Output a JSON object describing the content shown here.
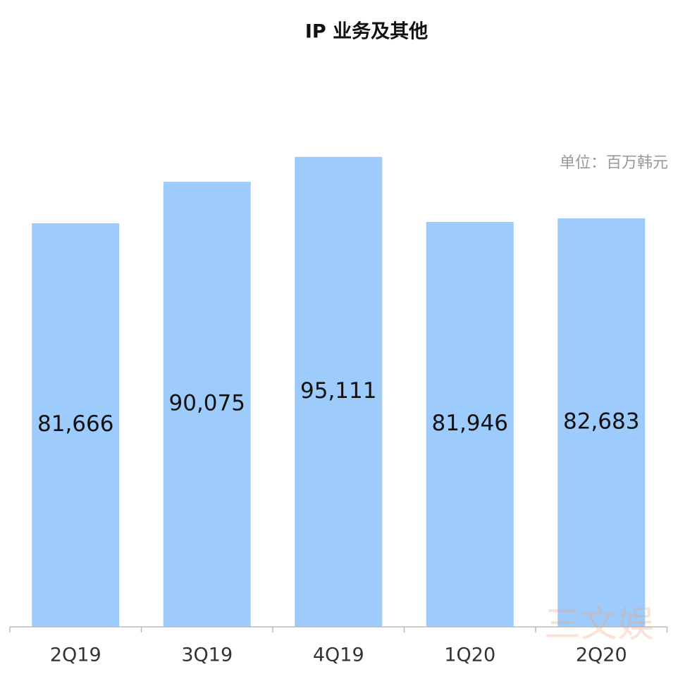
{
  "chart_data": {
    "type": "bar",
    "title": "IP 业务及其他",
    "unit_note": "单位：百万韩元",
    "categories": [
      "2Q19",
      "3Q19",
      "4Q19",
      "1Q20",
      "2Q20"
    ],
    "values": [
      81666,
      90075,
      95111,
      81946,
      82683
    ],
    "value_labels": [
      "81,666",
      "90,075",
      "95,111",
      "81,946",
      "82,683"
    ],
    "color": "#9dcbfb",
    "ylim": [
      0,
      100000
    ],
    "watermark": "三文娱"
  }
}
